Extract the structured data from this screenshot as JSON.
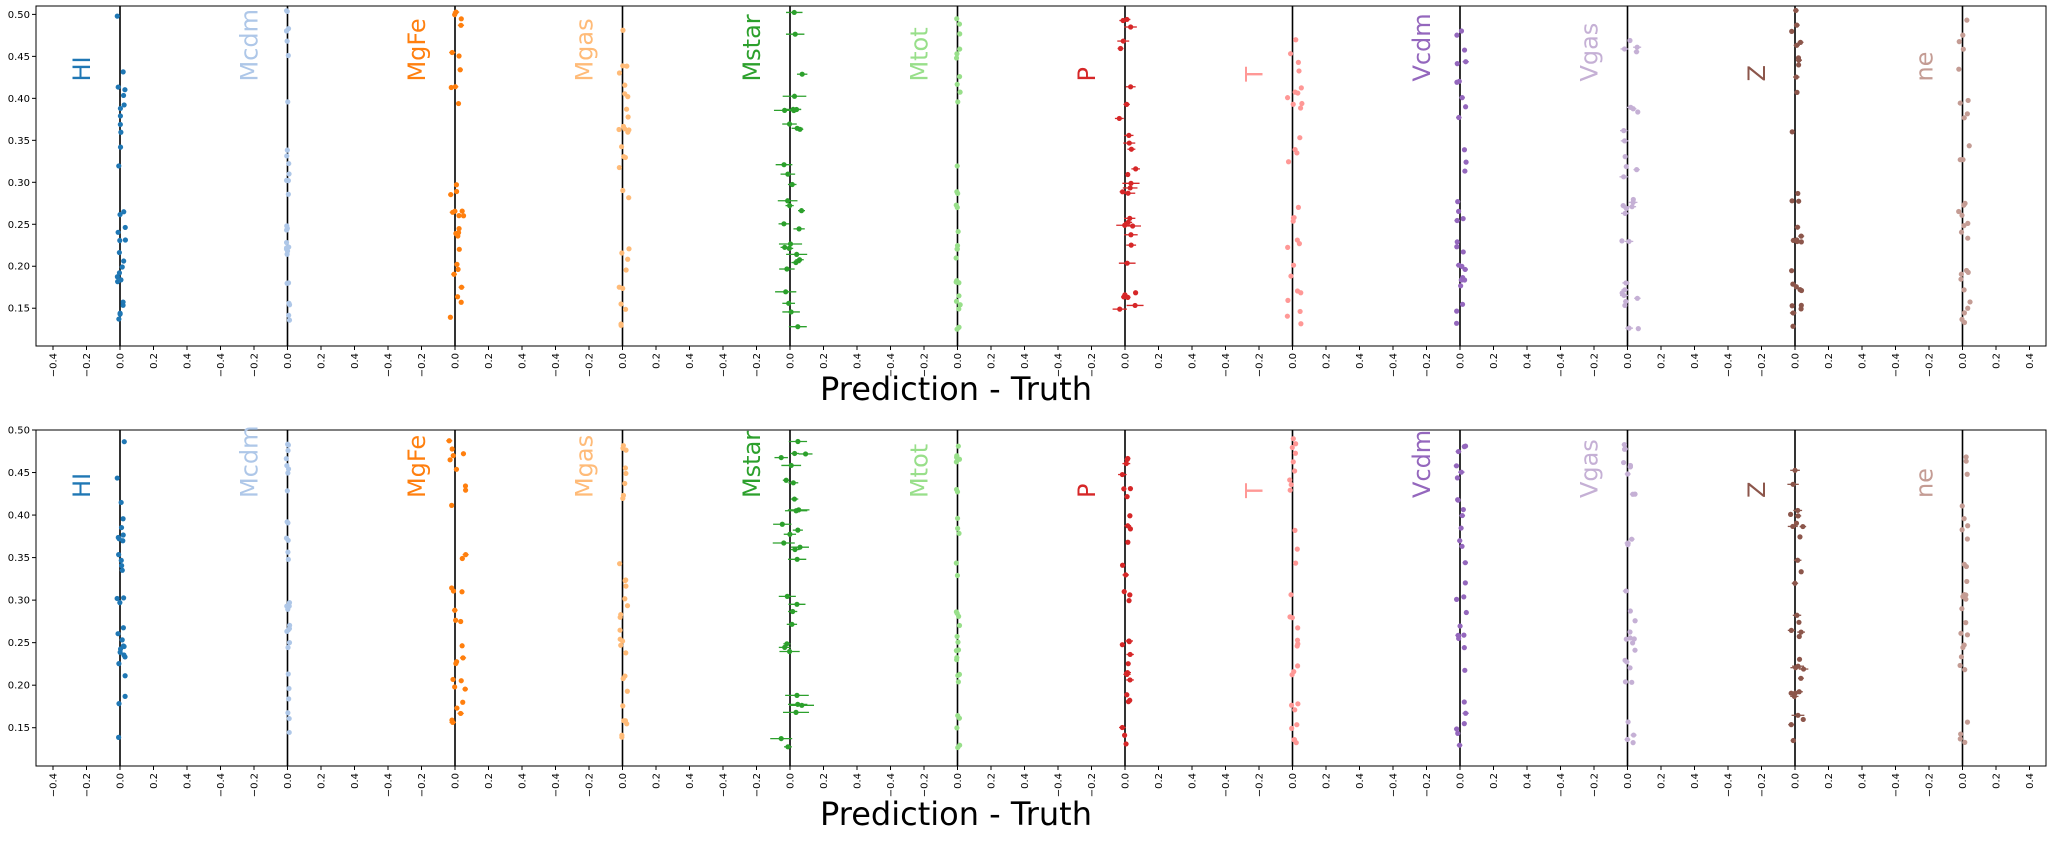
{
  "chart_data": [
    {
      "type": "scatter",
      "title": "",
      "xlabel": "Prediction - Truth",
      "ylabel": "",
      "ylim": [
        0.105,
        0.51
      ],
      "yticks": [
        "0.15",
        "0.20",
        "0.25",
        "0.30",
        "0.35",
        "0.40",
        "0.45",
        "0.50"
      ],
      "xticks": [
        "−0.4",
        "−0.2",
        "0.0",
        "0.2",
        "0.4"
      ],
      "xlim_per_panel": [
        -0.45,
        0.55
      ],
      "grid": false,
      "reference_line": "x = 0",
      "series": [
        {
          "name": "HI",
          "color": "#1f77b4",
          "seed": 11,
          "spread": 0.05,
          "err": 0.01
        },
        {
          "name": "Mcdm",
          "color": "#aec7e8",
          "seed": 23,
          "spread": 0.02,
          "err": 0.005
        },
        {
          "name": "MgFe",
          "color": "#ff7f0e",
          "seed": 37,
          "spread": 0.09,
          "err": 0.015
        },
        {
          "name": "Mgas",
          "color": "#ffbb78",
          "seed": 41,
          "spread": 0.06,
          "err": 0.01
        },
        {
          "name": "Mstar",
          "color": "#2ca02c",
          "seed": 53,
          "spread": 0.12,
          "err": 0.06
        },
        {
          "name": "Mtot",
          "color": "#98df8a",
          "seed": 67,
          "spread": 0.025,
          "err": 0.005
        },
        {
          "name": "P",
          "color": "#d62728",
          "seed": 71,
          "spread": 0.1,
          "err": 0.04
        },
        {
          "name": "T",
          "color": "#ff9896",
          "seed": 83,
          "spread": 0.09,
          "err": 0.01
        },
        {
          "name": "Vcdm",
          "color": "#9467bd",
          "seed": 97,
          "spread": 0.06,
          "err": 0.015
        },
        {
          "name": "Vgas",
          "color": "#c5b0d5",
          "seed": 101,
          "spread": 0.1,
          "err": 0.02
        },
        {
          "name": "Z",
          "color": "#8c564b",
          "seed": 113,
          "spread": 0.06,
          "err": 0.015
        },
        {
          "name": "ne",
          "color": "#c49c94",
          "seed": 127,
          "spread": 0.07,
          "err": 0.01
        }
      ]
    },
    {
      "type": "scatter",
      "title": "",
      "xlabel": "Prediction - Truth",
      "ylabel": "",
      "ylim": [
        0.105,
        0.5
      ],
      "yticks": [
        "0.15",
        "0.20",
        "0.25",
        "0.30",
        "0.35",
        "0.40",
        "0.45",
        "0.50"
      ],
      "xticks": [
        "−0.4",
        "−0.2",
        "0.0",
        "0.2",
        "0.4"
      ],
      "xlim_per_panel": [
        -0.45,
        0.55
      ],
      "grid": false,
      "reference_line": "x = 0",
      "series": [
        {
          "name": "HI",
          "color": "#1f77b4",
          "seed": 211,
          "spread": 0.05,
          "err": 0.01
        },
        {
          "name": "Mcdm",
          "color": "#aec7e8",
          "seed": 223,
          "spread": 0.02,
          "err": 0.005
        },
        {
          "name": "MgFe",
          "color": "#ff7f0e",
          "seed": 237,
          "spread": 0.1,
          "err": 0.015
        },
        {
          "name": "Mgas",
          "color": "#ffbb78",
          "seed": 241,
          "spread": 0.05,
          "err": 0.01
        },
        {
          "name": "Mstar",
          "color": "#2ca02c",
          "seed": 253,
          "spread": 0.15,
          "err": 0.06
        },
        {
          "name": "Mtot",
          "color": "#98df8a",
          "seed": 267,
          "spread": 0.02,
          "err": 0.005
        },
        {
          "name": "P",
          "color": "#d62728",
          "seed": 271,
          "spread": 0.05,
          "err": 0.02
        },
        {
          "name": "T",
          "color": "#ff9896",
          "seed": 283,
          "spread": 0.05,
          "err": 0.01
        },
        {
          "name": "Vcdm",
          "color": "#9467bd",
          "seed": 297,
          "spread": 0.06,
          "err": 0.015
        },
        {
          "name": "Vgas",
          "color": "#c5b0d5",
          "seed": 301,
          "spread": 0.07,
          "err": 0.015
        },
        {
          "name": "Z",
          "color": "#8c564b",
          "seed": 313,
          "spread": 0.08,
          "err": 0.03
        },
        {
          "name": "ne",
          "color": "#c49c94",
          "seed": 327,
          "spread": 0.05,
          "err": 0.01
        }
      ]
    }
  ]
}
